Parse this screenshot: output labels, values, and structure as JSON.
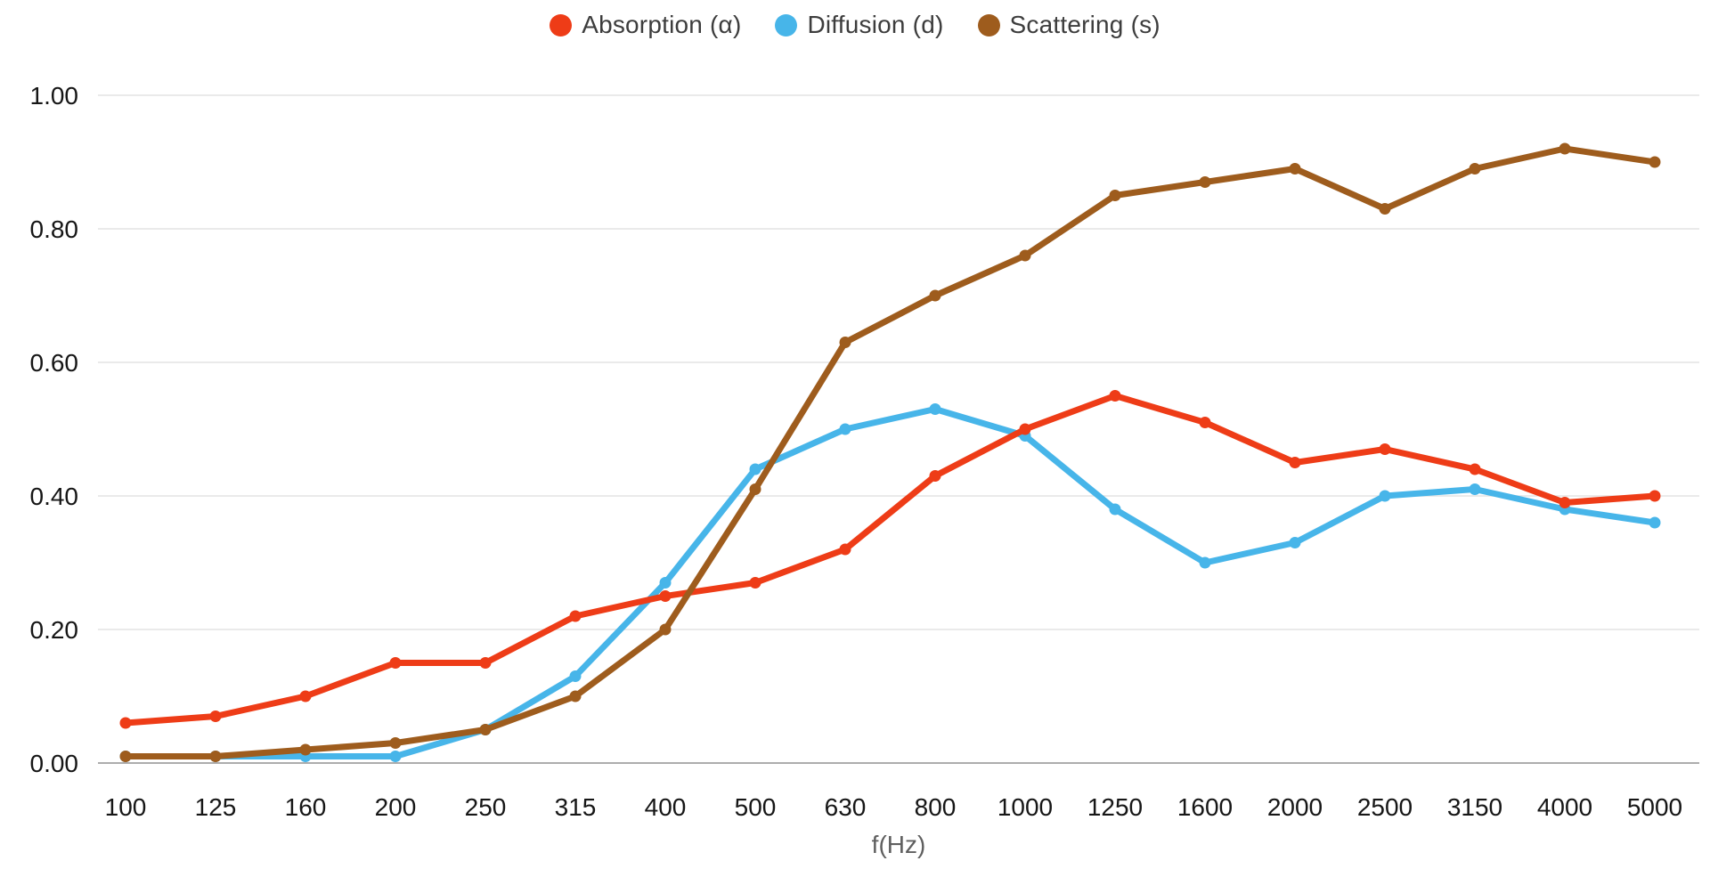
{
  "chart_data": {
    "type": "line",
    "title": "",
    "xlabel": "f(Hz)",
    "ylabel": "",
    "ylim": [
      0,
      1
    ],
    "grid": "horizontal",
    "legend_position": "top-center",
    "y_tick_labels": [
      "0.00",
      "0.20",
      "0.40",
      "0.60",
      "0.80",
      "1.00"
    ],
    "categories": [
      "100",
      "125",
      "160",
      "200",
      "250",
      "315",
      "400",
      "500",
      "630",
      "800",
      "1000",
      "1250",
      "1600",
      "2000",
      "2500",
      "3150",
      "4000",
      "5000"
    ],
    "series": [
      {
        "name": "Absorption (α)",
        "color": "#ee3c17",
        "z": 2,
        "values": [
          0.06,
          0.07,
          0.1,
          0.15,
          0.15,
          0.22,
          0.25,
          0.27,
          0.32,
          0.43,
          0.5,
          0.55,
          0.51,
          0.45,
          0.47,
          0.44,
          0.39,
          0.4
        ]
      },
      {
        "name": "Diffusion (d)",
        "color": "#47b5e9",
        "z": 1,
        "values": [
          0.01,
          0.01,
          0.01,
          0.01,
          0.05,
          0.13,
          0.27,
          0.44,
          0.5,
          0.53,
          0.49,
          0.38,
          0.3,
          0.33,
          0.4,
          0.41,
          0.38,
          0.36
        ]
      },
      {
        "name": "Scattering (s)",
        "color": "#9e5c1d",
        "z": 3,
        "values": [
          0.01,
          0.01,
          0.02,
          0.03,
          0.05,
          0.1,
          0.2,
          0.41,
          0.63,
          0.7,
          0.76,
          0.85,
          0.87,
          0.89,
          0.83,
          0.89,
          0.92,
          0.9
        ]
      }
    ],
    "colors": {
      "gridline": "#e3e3e3",
      "baseline": "#adadad",
      "tick_text": "#161616",
      "axis_title_text": "#5f5f5f",
      "legend_text": "#3d3d3d",
      "background": "#ffffff"
    }
  }
}
